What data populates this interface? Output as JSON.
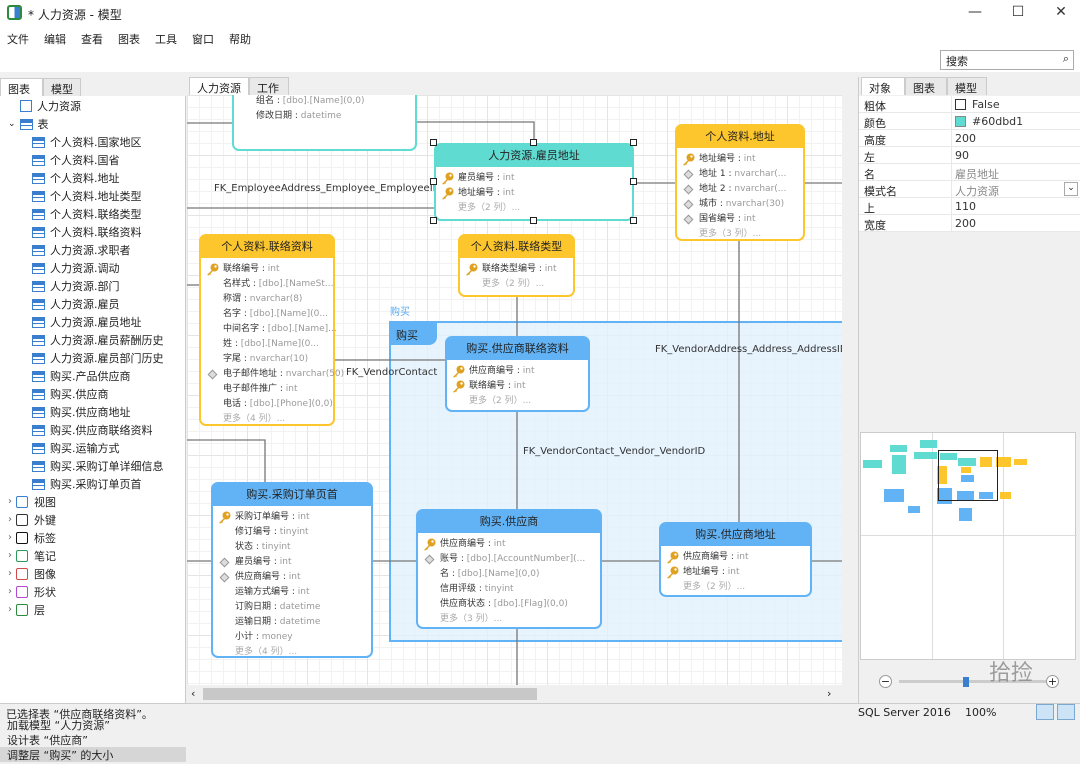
{
  "window": {
    "title": "* 人力资源 - 模型",
    "minimize": "—",
    "maximize": "☐",
    "close": "✕"
  },
  "menu": [
    "文件",
    "编辑",
    "查看",
    "图表",
    "工具",
    "窗口",
    "帮助"
  ],
  "search": {
    "placeholder": "搜索"
  },
  "left_panel": {
    "tabs": [
      "图表",
      "模型"
    ],
    "root": "人力资源",
    "table_group": "表",
    "tables": [
      "个人资料.国家地区",
      "个人资料.国省",
      "个人资料.地址",
      "个人资料.地址类型",
      "个人资料.联络类型",
      "个人资料.联络资料",
      "人力资源.求职者",
      "人力资源.调动",
      "人力资源.部门",
      "人力资源.雇员",
      "人力资源.雇员地址",
      "人力资源.雇员薪酬历史",
      "人力资源.雇员部门历史",
      "购买.产品供应商",
      "购买.供应商",
      "购买.供应商地址",
      "购买.供应商联络资料",
      "购买.运输方式",
      "购买.采购订单详细信息",
      "购买.采购订单页首"
    ],
    "groups": [
      {
        "label": "视图",
        "icon": "view-icon"
      },
      {
        "label": "外键",
        "icon": "foreign-key-icon"
      },
      {
        "label": "标签",
        "icon": "label-icon"
      },
      {
        "label": "笔记",
        "icon": "note-icon"
      },
      {
        "label": "图像",
        "icon": "image-icon"
      },
      {
        "label": "形状",
        "icon": "shape-icon"
      },
      {
        "label": "层",
        "icon": "layer-icon"
      }
    ],
    "log": [
      "加载模型 “人力资源”",
      "设计表 “供应商”",
      "调整层 “购买” 的大小"
    ]
  },
  "canvas_tabs": [
    "人力资源",
    "工作"
  ],
  "colors": {
    "teal": "#60dbd1",
    "yellow": "#fdc62c",
    "blue": "#62b3f5"
  },
  "layer": {
    "name": "购买",
    "tab": "购买"
  },
  "foreign_keys": [
    "FK_EmployeeAddress_Employee_EmployeeID",
    "FK_VendorContact",
    "FK_VendorContact_Vendor_VendorID",
    "FK_VendorAddress_Address_AddressID"
  ],
  "entities": [
    {
      "title": "",
      "color": "teal",
      "rows": [
        {
          "n": "名",
          "t": "[dbo].[Name](0,0)",
          "m": "dia"
        },
        {
          "n": "组名",
          "t": "[dbo].[Name](0,0)"
        },
        {
          "n": "修改日期",
          "t": "datetime"
        }
      ]
    },
    {
      "title": "人力资源.雇员地址",
      "color": "teal",
      "selected": true,
      "rows": [
        {
          "n": "雇员编号",
          "t": "int",
          "m": "key"
        },
        {
          "n": "地址编号",
          "t": "int",
          "m": "key"
        }
      ],
      "more": "更多（2 列）..."
    },
    {
      "title": "个人资料.地址",
      "color": "yellow",
      "rows": [
        {
          "n": "地址编号",
          "t": "int",
          "m": "key"
        },
        {
          "n": "地址 1",
          "t": "nvarchar(...",
          "m": "dia"
        },
        {
          "n": "地址 2",
          "t": "nvarchar(...",
          "m": "dia"
        },
        {
          "n": "城市",
          "t": "nvarchar(30)",
          "m": "dia"
        },
        {
          "n": "国省编号",
          "t": "int",
          "m": "dia"
        }
      ],
      "more": "更多（3 列）..."
    },
    {
      "title": "个人资料.联络资料",
      "color": "yellow",
      "rows": [
        {
          "n": "联络编号",
          "t": "int",
          "m": "key"
        },
        {
          "n": "名样式",
          "t": "[dbo].[NameSt..."
        },
        {
          "n": "称谓",
          "t": "nvarchar(8)"
        },
        {
          "n": "名字",
          "t": "[dbo].[Name](0..."
        },
        {
          "n": "中间名字",
          "t": "[dbo].[Name]..."
        },
        {
          "n": "姓",
          "t": "[dbo].[Name](0..."
        },
        {
          "n": "字尾",
          "t": "nvarchar(10)"
        },
        {
          "n": "电子邮件地址",
          "t": "nvarchar(50)",
          "m": "dia"
        },
        {
          "n": "电子邮件推广",
          "t": "int"
        },
        {
          "n": "电话",
          "t": "[dbo].[Phone](0,0)"
        }
      ],
      "more": "更多（4 列）..."
    },
    {
      "title": "个人资料.联络类型",
      "color": "yellow",
      "rows": [
        {
          "n": "联络类型编号",
          "t": "int",
          "m": "key"
        }
      ],
      "more": "更多（2 列）..."
    },
    {
      "title": "购买.供应商联络资料",
      "color": "blue",
      "rows": [
        {
          "n": "供应商编号",
          "t": "int",
          "m": "key"
        },
        {
          "n": "联络编号",
          "t": "int",
          "m": "key"
        }
      ],
      "more": "更多（2 列）..."
    },
    {
      "title": "购买.采购订单页首",
      "color": "blue",
      "rows": [
        {
          "n": "采购订单编号",
          "t": "int",
          "m": "key"
        },
        {
          "n": "修订编号",
          "t": "tinyint"
        },
        {
          "n": "状态",
          "t": "tinyint"
        },
        {
          "n": "雇员编号",
          "t": "int",
          "m": "dia"
        },
        {
          "n": "供应商编号",
          "t": "int",
          "m": "dia"
        },
        {
          "n": "运输方式编号",
          "t": "int"
        },
        {
          "n": "订购日期",
          "t": "datetime"
        },
        {
          "n": "运输日期",
          "t": "datetime"
        },
        {
          "n": "小计",
          "t": "money"
        }
      ],
      "more": "更多（4 列）..."
    },
    {
      "title": "购买.供应商",
      "color": "blue",
      "rows": [
        {
          "n": "供应商编号",
          "t": "int",
          "m": "key"
        },
        {
          "n": "账号",
          "t": "[dbo].[AccountNumber](...",
          "m": "dia"
        },
        {
          "n": "名",
          "t": "[dbo].[Name](0,0)"
        },
        {
          "n": "信用评级",
          "t": "tinyint"
        },
        {
          "n": "供应商状态",
          "t": "[dbo].[Flag](0,0)"
        }
      ],
      "more": "更多（3 列）..."
    },
    {
      "title": "购买.供应商地址",
      "color": "blue",
      "rows": [
        {
          "n": "供应商编号",
          "t": "int",
          "m": "key"
        },
        {
          "n": "地址编号",
          "t": "int",
          "m": "key"
        }
      ],
      "more": "更多（2 列）..."
    }
  ],
  "right_panel": {
    "tabs": [
      "对象",
      "图表",
      "模型"
    ],
    "properties": [
      {
        "k": "粗体",
        "v": "False",
        "checkbox": true
      },
      {
        "k": "颜色",
        "v": "#60dbd1",
        "swatch": "#60dbd1"
      },
      {
        "k": "高度",
        "v": "200"
      },
      {
        "k": "左",
        "v": "90"
      },
      {
        "k": "名",
        "v": "雇员地址",
        "gray": true
      },
      {
        "k": "模式名",
        "v": "人力资源",
        "gray": true,
        "dropdown": true
      },
      {
        "k": "上",
        "v": "110"
      },
      {
        "k": "宽度",
        "v": "200"
      }
    ],
    "zoom_minus": "−",
    "zoom_plus": "+",
    "watermark": "拾捡"
  },
  "status": {
    "message": "已选择表 “供应商联络资料”。",
    "server": "SQL Server 2016",
    "zoom": "100%"
  }
}
